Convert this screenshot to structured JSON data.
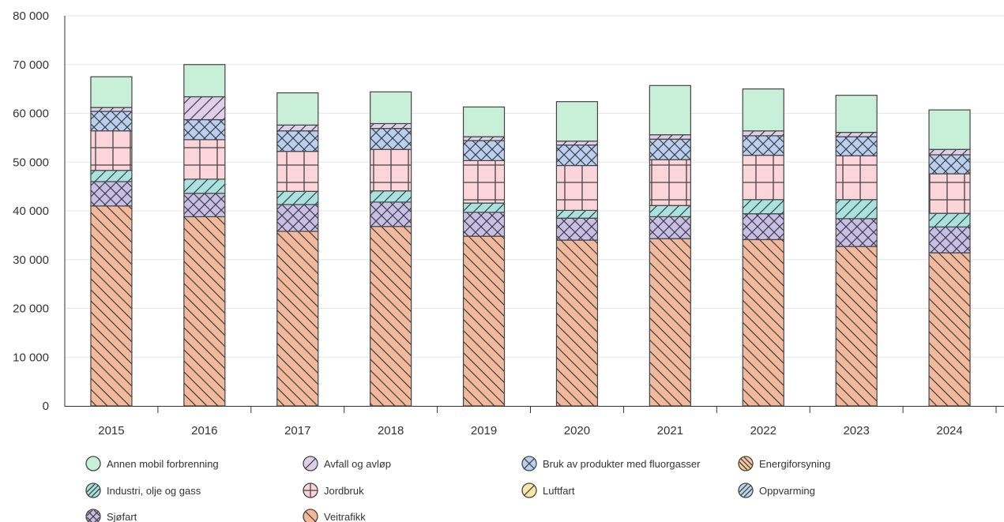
{
  "chart_data": {
    "type": "bar",
    "stacked": true,
    "categories": [
      "2015",
      "2016",
      "2017",
      "2018",
      "2019",
      "2020",
      "2021",
      "2022",
      "2023",
      "2024"
    ],
    "ylim": [
      0,
      80000
    ],
    "yticks": [
      0,
      10000,
      20000,
      30000,
      40000,
      50000,
      60000,
      70000,
      80000
    ],
    "ytick_labels": [
      "0",
      "10 000",
      "20 000",
      "30 000",
      "40 000",
      "50 000",
      "60 000",
      "70 000",
      "80 000"
    ],
    "grid": true,
    "legend_position": "bottom",
    "series": [
      {
        "key": "veitrafikk",
        "name": "Veitrafikk",
        "color": "#f4b89a",
        "pattern": "diag-back",
        "values": [
          41000,
          38800,
          35800,
          36800,
          34800,
          34000,
          34300,
          34100,
          32700,
          31400
        ]
      },
      {
        "key": "sjofart",
        "name": "Sjøfart",
        "color": "#c8bfe8",
        "pattern": "crosshatch",
        "values": [
          5000,
          4800,
          5500,
          5000,
          4900,
          4500,
          4500,
          5300,
          5700,
          5300
        ]
      },
      {
        "key": "oppvarming",
        "name": "Oppvarming",
        "color": "#b9d9f2",
        "pattern": "diag-fwd",
        "values": [
          0,
          0,
          0,
          0,
          0,
          0,
          0,
          0,
          0,
          0
        ]
      },
      {
        "key": "industri",
        "name": "Industri, olje og gass",
        "color": "#a8e3e0",
        "pattern": "diag-fwd",
        "values": [
          2300,
          2900,
          2700,
          2300,
          1900,
          1600,
          2300,
          2900,
          3900,
          2800
        ]
      },
      {
        "key": "luftfart",
        "name": "Luftfart",
        "color": "#fbe6a6",
        "pattern": "diag-fwd",
        "values": [
          0,
          0,
          0,
          0,
          0,
          0,
          0,
          0,
          0,
          0
        ]
      },
      {
        "key": "jordbruk",
        "name": "Jordbruk",
        "color": "#fbd5da",
        "pattern": "grid",
        "values": [
          8100,
          8100,
          8200,
          8500,
          8700,
          9200,
          9400,
          9100,
          9000,
          8100
        ]
      },
      {
        "key": "energi",
        "name": "Energiforsyning",
        "color": "#f6c99a",
        "pattern": "diag-back",
        "values": [
          0,
          0,
          0,
          0,
          0,
          0,
          0,
          0,
          0,
          0
        ]
      },
      {
        "key": "fluorgasser",
        "name": "Bruk av produkter med fluorgasser",
        "color": "#b9d0f2",
        "pattern": "crosshatch",
        "values": [
          0,
          0,
          0,
          0,
          0,
          0,
          0,
          0,
          0,
          0
        ]
      },
      {
        "key": "industri_top",
        "name": "Industri, olje og gass",
        "color": "#a8e3e0",
        "pattern": "diag-fwd",
        "values": [
          0,
          0,
          0,
          0,
          0,
          0,
          0,
          0,
          0,
          0
        ]
      },
      {
        "key": "bruk",
        "name": "Bruk av produkter med fluorgasser",
        "color": "#b9d0f2",
        "pattern": "crosshatch",
        "values": [
          4000,
          4100,
          4200,
          4300,
          4100,
          4200,
          4200,
          4000,
          3900,
          3900
        ]
      },
      {
        "key": "avfall",
        "name": "Avfall og avløp",
        "color": "#e0cfe8",
        "pattern": "diag-fwd",
        "values": [
          800,
          4700,
          1200,
          1000,
          800,
          800,
          900,
          1000,
          900,
          1100
        ]
      },
      {
        "key": "annen",
        "name": "Annen mobil forbrenning",
        "color": "#c8efd7",
        "pattern": "none",
        "values": [
          6300,
          6600,
          6600,
          6500,
          6100,
          8100,
          10100,
          8600,
          7600,
          8100
        ]
      }
    ]
  },
  "legend": [
    {
      "key": "annen",
      "label": "Annen mobil forbrenning",
      "color": "#c8efd7",
      "icon": "plain-circle-icon",
      "pattern": "none"
    },
    {
      "key": "avfall",
      "label": "Avfall og avløp",
      "color": "#e0cfe8",
      "icon": "diag-circle-icon",
      "pattern": "slash"
    },
    {
      "key": "bruk",
      "label": "Bruk av produkter med fluorgasser",
      "color": "#b9d0f2",
      "icon": "x-circle-icon",
      "pattern": "x"
    },
    {
      "key": "energi",
      "label": "Energiforsyning",
      "color": "#f6c99a",
      "icon": "diag-circle-icon",
      "pattern": "hatch-back"
    },
    {
      "key": "industri",
      "label": "Industri, olje og gass",
      "color": "#a8e3e0",
      "icon": "diag-circle-icon",
      "pattern": "hatch-fwd"
    },
    {
      "key": "jordbruk",
      "label": "Jordbruk",
      "color": "#fbd5da",
      "icon": "plus-circle-icon",
      "pattern": "plus"
    },
    {
      "key": "luftfart",
      "label": "Luftfart",
      "color": "#fbe6a6",
      "icon": "diag-circle-icon",
      "pattern": "slash"
    },
    {
      "key": "oppvarming",
      "label": "Oppvarming",
      "color": "#b9d9f2",
      "icon": "diag-circle-icon",
      "pattern": "hatch-fwd"
    },
    {
      "key": "sjofart",
      "label": "Sjøfart",
      "color": "#c8bfe8",
      "icon": "crosshatch-circle-icon",
      "pattern": "cross"
    },
    {
      "key": "veitrafikk",
      "label": "Veitrafikk",
      "color": "#f4b89a",
      "icon": "diag-circle-icon",
      "pattern": "backslash"
    }
  ]
}
